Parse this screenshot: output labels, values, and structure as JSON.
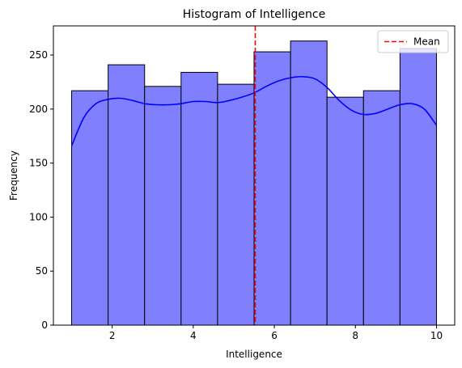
{
  "chart_data": {
    "type": "bar",
    "title": "Histogram of Intelligence",
    "xlabel": "Intelligence",
    "ylabel": "Frequency",
    "xlim": [
      0.55,
      10.45
    ],
    "ylim": [
      0,
      277
    ],
    "bin_edges": [
      1.0,
      1.9,
      2.8,
      3.7,
      4.6,
      5.5,
      6.4,
      7.3,
      8.2,
      9.1,
      10.0
    ],
    "values": [
      217,
      241,
      221,
      234,
      223,
      253,
      263,
      211,
      217,
      256
    ],
    "xticks": [
      2,
      4,
      6,
      8,
      10
    ],
    "yticks": [
      0,
      50,
      100,
      150,
      200,
      250
    ],
    "bar_color": "#8080ff",
    "bar_edge_color": "#000000",
    "kde": {
      "color": "#0000ff",
      "x": [
        1.0,
        1.3,
        1.6,
        1.9,
        2.2,
        2.5,
        2.8,
        3.1,
        3.4,
        3.7,
        4.0,
        4.3,
        4.6,
        4.9,
        5.2,
        5.5,
        5.8,
        6.1,
        6.4,
        6.7,
        7.0,
        7.3,
        7.6,
        7.9,
        8.2,
        8.5,
        8.8,
        9.1,
        9.4,
        9.7,
        10.0
      ],
      "y": [
        166,
        192,
        205,
        209,
        210,
        208,
        205,
        204,
        204,
        205,
        207,
        207,
        206,
        208,
        211,
        215,
        221,
        226,
        229,
        230,
        228,
        220,
        208,
        199,
        195,
        196,
        200,
        204,
        205,
        200,
        185
      ]
    },
    "mean": {
      "value": 5.53,
      "color": "#ff0000",
      "label": "Mean"
    },
    "legend": {
      "position": "top-right",
      "entries": [
        "Mean"
      ]
    }
  }
}
